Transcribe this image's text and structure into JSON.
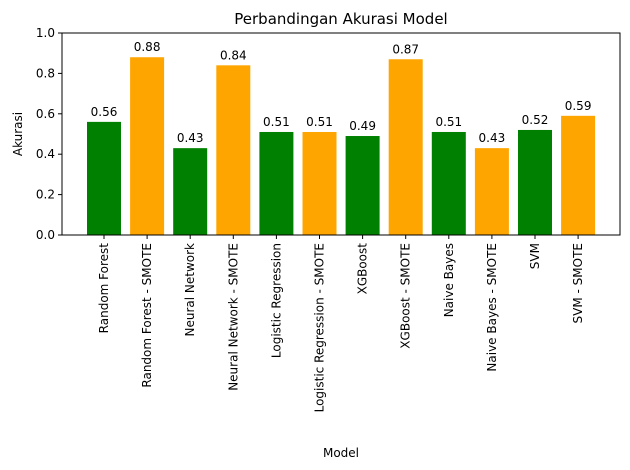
{
  "chart_data": {
    "type": "bar",
    "title": "Perbandingan Akurasi Model",
    "xlabel": "Model",
    "ylabel": "Akurasi",
    "ylim": [
      0,
      1.0
    ],
    "yticks": [
      "0.0",
      "0.2",
      "0.4",
      "0.6",
      "0.8",
      "1.0"
    ],
    "grid": false,
    "categories": [
      "Random Forest",
      "Random Forest - SMOTE",
      "Neural Network",
      "Neural Network - SMOTE",
      "Logistic Regression",
      "Logistic Regression - SMOTE",
      "XGBoost",
      "XGBoost - SMOTE",
      "Naive Bayes",
      "Naive Bayes - SMOTE",
      "SVM",
      "SVM - SMOTE"
    ],
    "values": [
      0.56,
      0.88,
      0.43,
      0.84,
      0.51,
      0.51,
      0.49,
      0.87,
      0.51,
      0.43,
      0.52,
      0.59
    ],
    "data_labels": [
      "0.56",
      "0.88",
      "0.43",
      "0.84",
      "0.51",
      "0.51",
      "0.49",
      "0.87",
      "0.51",
      "0.43",
      "0.52",
      "0.59"
    ],
    "bar_colors": [
      "#008000",
      "#ffa500",
      "#008000",
      "#ffa500",
      "#008000",
      "#ffa500",
      "#008000",
      "#ffa500",
      "#008000",
      "#ffa500",
      "#008000",
      "#ffa500"
    ]
  }
}
